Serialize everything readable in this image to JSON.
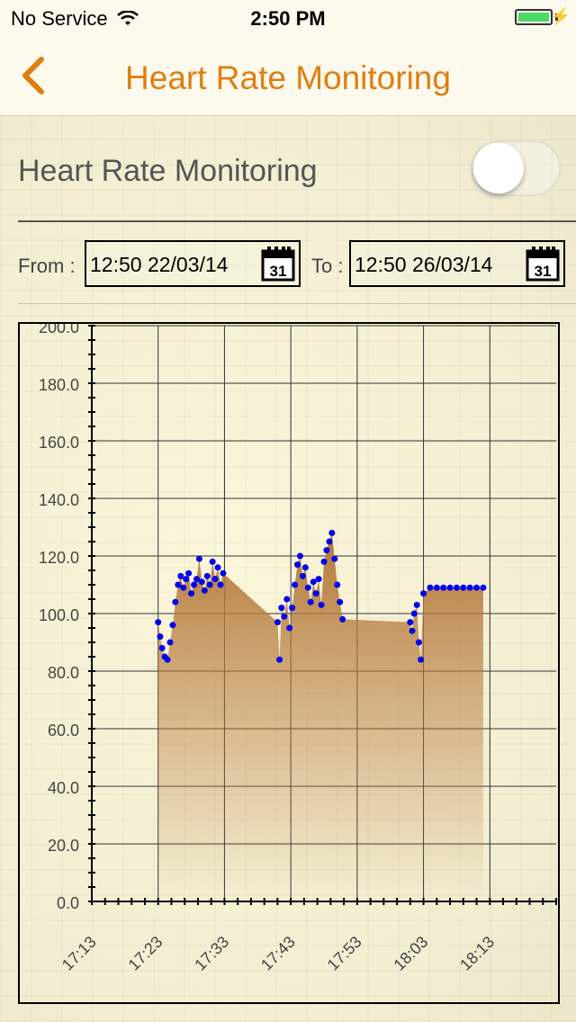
{
  "status_bar": {
    "carrier": "No Service",
    "time": "2:50 PM",
    "battery_color": "#4cd964"
  },
  "nav": {
    "back_icon": "chevron-left-icon",
    "title": "Heart Rate Monitoring",
    "accent": "#de7f12"
  },
  "monitoring": {
    "label": "Heart Rate Monitoring",
    "enabled": false
  },
  "date_range": {
    "from_label": "From :",
    "from_value": "12:50 22/03/14",
    "to_label": "To :",
    "to_value": "12:50 26/03/14",
    "calendar_icon_text": "31"
  },
  "chart_data": {
    "type": "scatter",
    "ylim": [
      0,
      200
    ],
    "yticks": [
      "0.0",
      "20.0",
      "40.0",
      "60.0",
      "80.0",
      "100.0",
      "120.0",
      "140.0",
      "160.0",
      "180.0",
      "200.0"
    ],
    "xticks": [
      "17:13",
      "17:23",
      "17:33",
      "17:43",
      "17:53",
      "18:03",
      "18:13"
    ],
    "xlim_minutes": [
      -10,
      60
    ],
    "point_color": "#0000ee",
    "fill_color": "#b57a3c",
    "series": [
      {
        "values": [
          {
            "t": 0.0,
            "v": 97
          },
          {
            "t": 0.3,
            "v": 92
          },
          {
            "t": 0.6,
            "v": 88
          },
          {
            "t": 1.0,
            "v": 85
          },
          {
            "t": 1.4,
            "v": 84
          },
          {
            "t": 1.8,
            "v": 90
          },
          {
            "t": 2.2,
            "v": 96
          },
          {
            "t": 2.6,
            "v": 104
          },
          {
            "t": 3.0,
            "v": 110
          },
          {
            "t": 3.4,
            "v": 113
          },
          {
            "t": 3.8,
            "v": 109
          },
          {
            "t": 4.2,
            "v": 112
          },
          {
            "t": 4.6,
            "v": 114
          },
          {
            "t": 5.0,
            "v": 107
          },
          {
            "t": 5.4,
            "v": 110
          },
          {
            "t": 5.8,
            "v": 112
          },
          {
            "t": 6.2,
            "v": 119
          },
          {
            "t": 6.6,
            "v": 111
          },
          {
            "t": 7.0,
            "v": 108
          },
          {
            "t": 7.4,
            "v": 113
          },
          {
            "t": 7.8,
            "v": 110
          },
          {
            "t": 8.2,
            "v": 118
          },
          {
            "t": 8.6,
            "v": 112
          },
          {
            "t": 9.0,
            "v": 116
          },
          {
            "t": 9.4,
            "v": 110
          },
          {
            "t": 9.8,
            "v": 114
          },
          {
            "t": 18.0,
            "v": 97
          },
          {
            "t": 18.3,
            "v": 84
          },
          {
            "t": 18.6,
            "v": 102
          },
          {
            "t": 19.0,
            "v": 99
          },
          {
            "t": 19.4,
            "v": 105
          },
          {
            "t": 19.8,
            "v": 95
          },
          {
            "t": 20.2,
            "v": 102
          },
          {
            "t": 20.6,
            "v": 110
          },
          {
            "t": 21.0,
            "v": 117
          },
          {
            "t": 21.4,
            "v": 120
          },
          {
            "t": 21.8,
            "v": 113
          },
          {
            "t": 22.2,
            "v": 116
          },
          {
            "t": 22.6,
            "v": 109
          },
          {
            "t": 23.0,
            "v": 104
          },
          {
            "t": 23.4,
            "v": 111
          },
          {
            "t": 23.8,
            "v": 107
          },
          {
            "t": 24.2,
            "v": 112
          },
          {
            "t": 24.6,
            "v": 103
          },
          {
            "t": 25.0,
            "v": 118
          },
          {
            "t": 25.4,
            "v": 122
          },
          {
            "t": 25.8,
            "v": 125
          },
          {
            "t": 26.2,
            "v": 128
          },
          {
            "t": 26.6,
            "v": 119
          },
          {
            "t": 27.0,
            "v": 110
          },
          {
            "t": 27.4,
            "v": 104
          },
          {
            "t": 27.8,
            "v": 98
          },
          {
            "t": 38.0,
            "v": 97
          },
          {
            "t": 38.3,
            "v": 94
          },
          {
            "t": 38.6,
            "v": 100
          },
          {
            "t": 39.0,
            "v": 103
          },
          {
            "t": 39.3,
            "v": 90
          },
          {
            "t": 39.6,
            "v": 84
          },
          {
            "t": 40.0,
            "v": 107
          },
          {
            "t": 41.0,
            "v": 109
          },
          {
            "t": 42.0,
            "v": 109
          },
          {
            "t": 43.0,
            "v": 109
          },
          {
            "t": 44.0,
            "v": 109
          },
          {
            "t": 45.0,
            "v": 109
          },
          {
            "t": 46.0,
            "v": 109
          },
          {
            "t": 47.0,
            "v": 109
          },
          {
            "t": 48.0,
            "v": 109
          },
          {
            "t": 49.0,
            "v": 109
          }
        ]
      }
    ]
  }
}
